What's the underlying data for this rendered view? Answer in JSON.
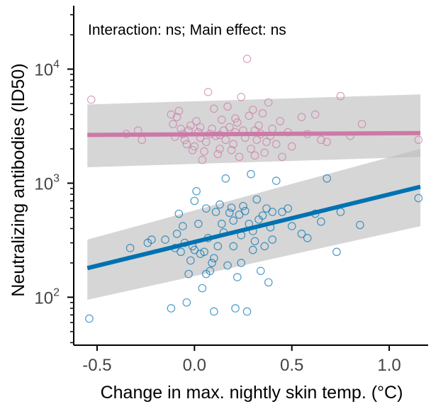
{
  "chart_data": {
    "type": "scatter",
    "xlabel": "Change in max. nightly skin temp. (°C)",
    "ylabel": "Neutralizing antibodies (ID50)",
    "annotation": "Interaction: ns; Main effect: ns",
    "x_scale": "linear",
    "y_scale": "log",
    "xlim": [
      -0.62,
      1.2
    ],
    "ylim": [
      38,
      36000
    ],
    "x_ticks": [
      -0.5,
      0.0,
      0.5,
      1.0
    ],
    "x_tick_labels": [
      "-0.5",
      "0.0",
      "0.5",
      "1.0"
    ],
    "y_ticks": [
      100,
      1000,
      10000
    ],
    "y_tick_labels": [
      "10",
      "10",
      "10"
    ],
    "y_tick_exponents": [
      "2",
      "3",
      "4"
    ],
    "grid": false,
    "colors": {
      "pink": "#cc79a7",
      "blue": "#0072b2",
      "band": "#bdbdbd"
    },
    "series": [
      {
        "color": "#cc79a7",
        "fit": {
          "x": [
            -0.55,
            1.16
          ],
          "y": [
            2650,
            2750
          ]
        },
        "ci_lower": [
          1380,
          1700
        ],
        "ci_upper": [
          4900,
          6000
        ],
        "points": [
          [
            -0.53,
            5400
          ],
          [
            -0.35,
            2700
          ],
          [
            -0.29,
            2900
          ],
          [
            -0.27,
            2400
          ],
          [
            -0.12,
            4000
          ],
          [
            -0.11,
            3300
          ],
          [
            -0.09,
            3800
          ],
          [
            -0.08,
            4300
          ],
          [
            -0.07,
            3000
          ],
          [
            -0.06,
            2700
          ],
          [
            -0.05,
            2400
          ],
          [
            -0.04,
            2200
          ],
          [
            -0.03,
            2900
          ],
          [
            -0.02,
            3200
          ],
          [
            -0.01,
            1950
          ],
          [
            0.0,
            2100
          ],
          [
            0.01,
            3500
          ],
          [
            0.02,
            2800
          ],
          [
            0.03,
            2500
          ],
          [
            0.04,
            1600
          ],
          [
            0.05,
            1900
          ],
          [
            0.06,
            2300
          ],
          [
            0.07,
            6300
          ],
          [
            0.08,
            2700
          ],
          [
            0.09,
            3000
          ],
          [
            0.1,
            4500
          ],
          [
            0.11,
            2600
          ],
          [
            0.12,
            1800
          ],
          [
            0.13,
            2000
          ],
          [
            0.14,
            3600
          ],
          [
            0.15,
            2900
          ],
          [
            0.16,
            2400
          ],
          [
            0.17,
            4700
          ],
          [
            0.18,
            3100
          ],
          [
            0.19,
            1950
          ],
          [
            0.2,
            2200
          ],
          [
            0.21,
            2800
          ],
          [
            0.22,
            3400
          ],
          [
            0.23,
            1700
          ],
          [
            0.24,
            5700
          ],
          [
            0.25,
            2900
          ],
          [
            0.26,
            2500
          ],
          [
            0.27,
            12300
          ],
          [
            0.28,
            3900
          ],
          [
            0.29,
            2000
          ],
          [
            0.3,
            4400
          ],
          [
            0.31,
            2900
          ],
          [
            0.32,
            2400
          ],
          [
            0.33,
            3200
          ],
          [
            0.34,
            2700
          ],
          [
            0.35,
            4100
          ],
          [
            0.36,
            1850
          ],
          [
            0.37,
            2300
          ],
          [
            0.38,
            5100
          ],
          [
            0.39,
            2600
          ],
          [
            0.4,
            3000
          ],
          [
            0.42,
            2200
          ],
          [
            0.45,
            1700
          ],
          [
            0.48,
            2800
          ],
          [
            0.5,
            2100
          ],
          [
            0.55,
            3800
          ],
          [
            0.58,
            2700
          ],
          [
            0.62,
            4000
          ],
          [
            0.65,
            2400
          ],
          [
            0.68,
            2300
          ],
          [
            0.75,
            5800
          ],
          [
            0.8,
            2600
          ],
          [
            0.86,
            3300
          ],
          [
            1.15,
            2400
          ],
          [
            -0.1,
            2550
          ],
          [
            0.03,
            3100
          ],
          [
            0.13,
            2650
          ],
          [
            0.21,
            3700
          ],
          [
            0.31,
            1750
          ],
          [
            0.44,
            3500
          ]
        ]
      },
      {
        "color": "#0072b2",
        "fit": {
          "x": [
            -0.55,
            1.16
          ],
          "y": [
            180,
            930
          ]
        },
        "ci_lower": [
          95,
          420
        ],
        "ci_upper": [
          320,
          2000
        ],
        "points": [
          [
            -0.54,
            65
          ],
          [
            -0.33,
            270
          ],
          [
            -0.24,
            300
          ],
          [
            -0.22,
            320
          ],
          [
            -0.12,
            80
          ],
          [
            -0.1,
            270
          ],
          [
            -0.09,
            360
          ],
          [
            -0.08,
            540
          ],
          [
            -0.07,
            250
          ],
          [
            -0.06,
            420
          ],
          [
            -0.05,
            300
          ],
          [
            -0.04,
            90
          ],
          [
            -0.03,
            160
          ],
          [
            -0.02,
            210
          ],
          [
            -0.01,
            280
          ],
          [
            0.0,
            700
          ],
          [
            0.01,
            850
          ],
          [
            0.02,
            440
          ],
          [
            0.03,
            240
          ],
          [
            0.04,
            120
          ],
          [
            0.05,
            250
          ],
          [
            0.06,
            600
          ],
          [
            0.07,
            330
          ],
          [
            0.08,
            170
          ],
          [
            0.09,
            200
          ],
          [
            0.1,
            75
          ],
          [
            0.11,
            560
          ],
          [
            0.12,
            280
          ],
          [
            0.13,
            650
          ],
          [
            0.14,
            440
          ],
          [
            0.15,
            370
          ],
          [
            0.16,
            1100
          ],
          [
            0.17,
            190
          ],
          [
            0.18,
            550
          ],
          [
            0.19,
            610
          ],
          [
            0.2,
            280
          ],
          [
            0.21,
            80
          ],
          [
            0.22,
            150
          ],
          [
            0.23,
            530
          ],
          [
            0.24,
            200
          ],
          [
            0.25,
            630
          ],
          [
            0.26,
            570
          ],
          [
            0.27,
            75
          ],
          [
            0.28,
            440
          ],
          [
            0.29,
            1200
          ],
          [
            0.3,
            380
          ],
          [
            0.31,
            310
          ],
          [
            0.32,
            720
          ],
          [
            0.33,
            480
          ],
          [
            0.34,
            170
          ],
          [
            0.35,
            520
          ],
          [
            0.36,
            280
          ],
          [
            0.37,
            600
          ],
          [
            0.38,
            135
          ],
          [
            0.39,
            410
          ],
          [
            0.4,
            320
          ],
          [
            0.42,
            1050
          ],
          [
            0.45,
            560
          ],
          [
            0.48,
            600
          ],
          [
            0.5,
            420
          ],
          [
            0.55,
            360
          ],
          [
            0.58,
            330
          ],
          [
            0.62,
            540
          ],
          [
            0.65,
            460
          ],
          [
            0.68,
            1100
          ],
          [
            0.73,
            250
          ],
          [
            0.75,
            560
          ],
          [
            0.85,
            430
          ],
          [
            1.15,
            740
          ],
          [
            -0.15,
            320
          ],
          [
            0.0,
            260
          ],
          [
            0.1,
            220
          ],
          [
            0.2,
            470
          ],
          [
            0.3,
            260
          ],
          [
            0.4,
            560
          ],
          [
            0.06,
            160
          ],
          [
            0.24,
            350
          ]
        ]
      }
    ]
  }
}
